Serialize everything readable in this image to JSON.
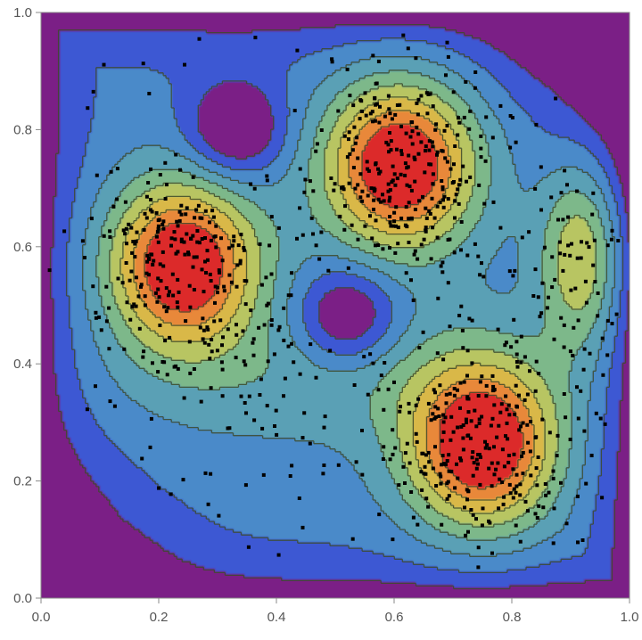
{
  "chart_data": {
    "type": "contour",
    "title": "",
    "xlabel": "",
    "ylabel": "",
    "xlim": [
      0,
      1
    ],
    "ylim": [
      0,
      1
    ],
    "x_ticks": [
      "0.0",
      "0.2",
      "0.4",
      "0.6",
      "0.8",
      "1.0"
    ],
    "y_ticks": [
      "0.0",
      "0.2",
      "0.4",
      "0.6",
      "0.8",
      "1.0"
    ],
    "peaks": [
      {
        "x": 0.24,
        "y": 0.57,
        "level": "high"
      },
      {
        "x": 0.61,
        "y": 0.74,
        "level": "high"
      },
      {
        "x": 0.75,
        "y": 0.26,
        "level": "high"
      },
      {
        "x": 0.92,
        "y": 0.58,
        "level": "medium"
      }
    ],
    "troughs": [
      {
        "x": 0.33,
        "y": 0.8
      },
      {
        "x": 0.52,
        "y": 0.48
      },
      {
        "x": 0.0,
        "y": 0.0
      },
      {
        "x": 1.0,
        "y": 1.0
      }
    ],
    "colormap": [
      "#7b1f86",
      "#3d58d3",
      "#4a8ac9",
      "#5aa0b5",
      "#7db88a",
      "#b8c562",
      "#d9b848",
      "#e8883a",
      "#dc2a2a"
    ],
    "contour_line_color": "#3d4a2a",
    "points_color": "#000000",
    "grid": false
  }
}
